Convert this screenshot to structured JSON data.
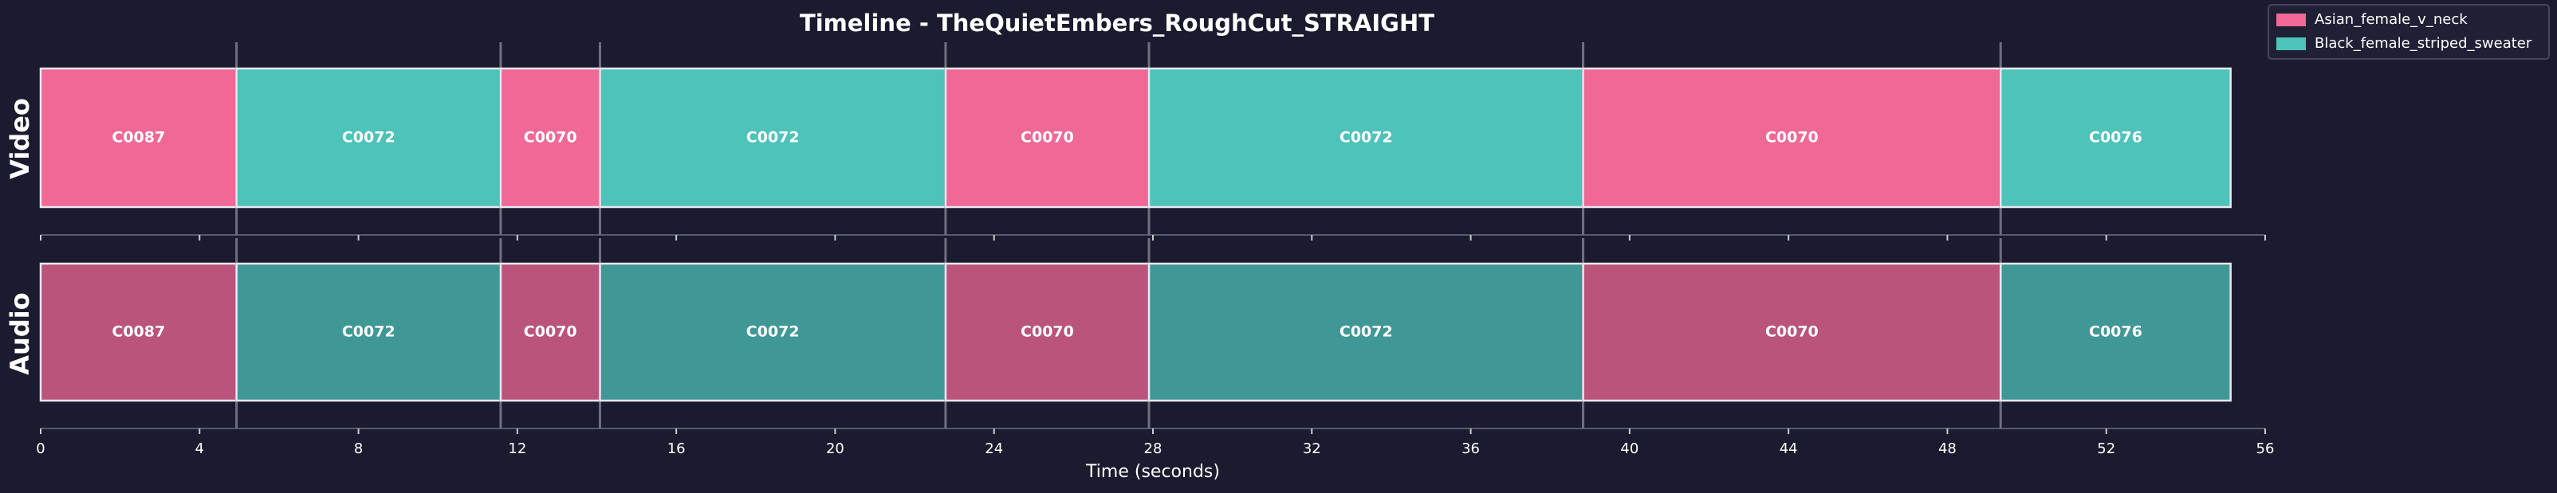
{
  "chart_data": {
    "type": "timeline",
    "title": "Timeline - TheQuietEmbers_RoughCut_STRAIGHT",
    "xlabel": "Time (seconds)",
    "tracks": [
      "Video",
      "Audio"
    ],
    "series": [
      {
        "name": "Asian_female_v_neck",
        "color": "#f06896"
      },
      {
        "name": "Black_female_striped_sweater",
        "color": "#4dc3b9"
      }
    ],
    "segments": [
      {
        "label": "C0087",
        "series": 0,
        "start": 0,
        "end": 4.93
      },
      {
        "label": "C0072",
        "series": 1,
        "start": 4.93,
        "end": 11.58
      },
      {
        "label": "C0070",
        "series": 0,
        "start": 11.58,
        "end": 14.08
      },
      {
        "label": "C0072",
        "series": 1,
        "start": 14.08,
        "end": 22.78
      },
      {
        "label": "C0070",
        "series": 0,
        "start": 22.78,
        "end": 27.9
      },
      {
        "label": "C0072",
        "series": 1,
        "start": 27.9,
        "end": 38.83
      },
      {
        "label": "C0070",
        "series": 0,
        "start": 38.83,
        "end": 49.34
      },
      {
        "label": "C0076",
        "series": 1,
        "start": 49.34,
        "end": 55.13
      }
    ],
    "xlim": [
      0,
      56
    ],
    "xticks": [
      0,
      4,
      8,
      12,
      16,
      20,
      24,
      28,
      32,
      36,
      40,
      44,
      48,
      52,
      56
    ],
    "legend": "upper right"
  }
}
